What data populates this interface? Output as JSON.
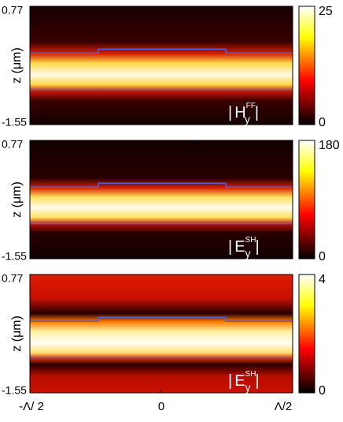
{
  "chart_data": [
    {
      "type": "heatmap",
      "ylabel": "z (μm)",
      "ylim": [
        -1.55,
        0.77
      ],
      "yticks": [
        -1.55,
        0.77
      ],
      "clim": [
        0,
        25
      ],
      "cticks": [
        0,
        25
      ],
      "field": {
        "symbol": "H",
        "sub": "y",
        "sup": "FF"
      }
    },
    {
      "type": "heatmap",
      "ylabel": "z (μm)",
      "ylim": [
        -1.55,
        0.77
      ],
      "yticks": [
        -1.55,
        0.77
      ],
      "clim": [
        0,
        180
      ],
      "cticks": [
        0,
        180
      ],
      "field": {
        "symbol": "E",
        "sub": "y",
        "sup": "SH"
      }
    },
    {
      "type": "heatmap",
      "ylabel": "z (μm)",
      "ylim": [
        -1.55,
        0.77
      ],
      "yticks": [
        -1.55,
        0.77
      ],
      "clim": [
        0,
        4
      ],
      "cticks": [
        0,
        4
      ],
      "field": {
        "symbol": "E",
        "sub": "y",
        "sup": "SH"
      },
      "xlim": [
        -0.5,
        0.5
      ],
      "xticks": [
        {
          "value": -0.5,
          "label": "-Λ/ 2"
        },
        0,
        {
          "value": 0.5,
          "label": "Λ/2"
        }
      ]
    }
  ]
}
